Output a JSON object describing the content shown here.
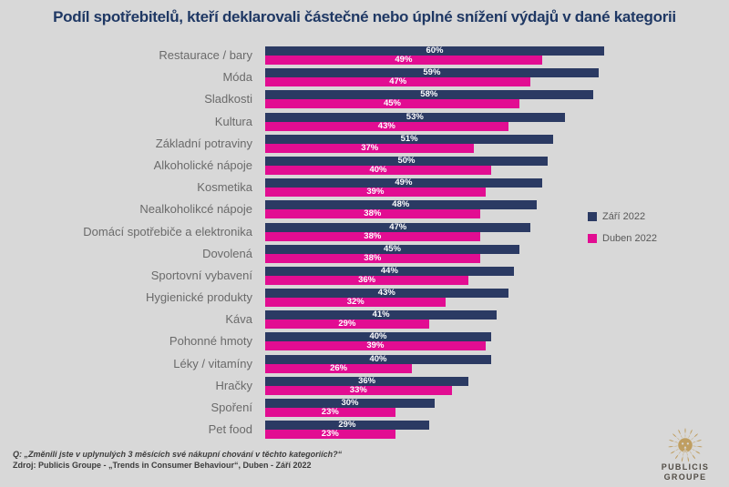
{
  "title": "Podíl spotřebitelů, kteří deklarovali částečné nebo úplné snížení výdajů v dané kategorii",
  "colors": {
    "background": "#d8d8d8",
    "title": "#1f3864",
    "series_september": "#2b3a63",
    "series_april": "#e20d92",
    "category_label": "#6a6a6a",
    "legend_text": "#595959",
    "footer_text": "#3c3c3c",
    "logo_gold": "#bf9e61",
    "logo_text": "#524d46"
  },
  "legend": {
    "items": [
      {
        "label": "Září 2022",
        "color": "#2b3a63"
      },
      {
        "label": "Duben 2022",
        "color": "#e20d92"
      }
    ]
  },
  "chart_data": {
    "type": "bar",
    "orientation": "horizontal",
    "title": "Podíl spotřebitelů, kteří deklarovali částečné nebo úplné snížení výdajů v dané kategorii",
    "categories": [
      "Restaurace / bary",
      "Móda",
      "Sladkosti",
      "Kultura",
      "Základní potraviny",
      "Alkoholické nápoje",
      "Kosmetika",
      "Nealkoholikcé nápoje",
      "Domácí spotřebiče a elektronika",
      "Dovolená",
      "Sportovní vybavení",
      "Hygienické produkty",
      "Káva",
      "Pohonné hmoty",
      "Léky / vitamíny",
      "Hračky",
      "Spoření",
      "Pet food"
    ],
    "series": [
      {
        "name": "Září 2022",
        "color": "#2b3a63",
        "values": [
          60,
          59,
          58,
          53,
          51,
          50,
          49,
          48,
          47,
          45,
          44,
          43,
          41,
          40,
          40,
          36,
          30,
          29
        ]
      },
      {
        "name": "Duben 2022",
        "color": "#e20d92",
        "values": [
          49,
          47,
          45,
          43,
          37,
          40,
          39,
          38,
          38,
          38,
          36,
          32,
          29,
          39,
          26,
          33,
          23,
          23
        ]
      }
    ],
    "value_suffix": "%",
    "data_labels": "inside-center",
    "xlim": [
      0,
      60
    ],
    "grid": false,
    "legend_position": "right"
  },
  "footer": {
    "question": "Q: „Změnili jste v uplynulých 3 měsících své nákupní chování v těchto kategoriích?“",
    "source": "Zdroj: Publicis Groupe -  „Trends in Consumer Behaviour“, Duben - Září 2022"
  },
  "logo": {
    "icon": "lion-sunburst-icon",
    "line1": "PUBLICIS",
    "line2": "GROUPE"
  }
}
